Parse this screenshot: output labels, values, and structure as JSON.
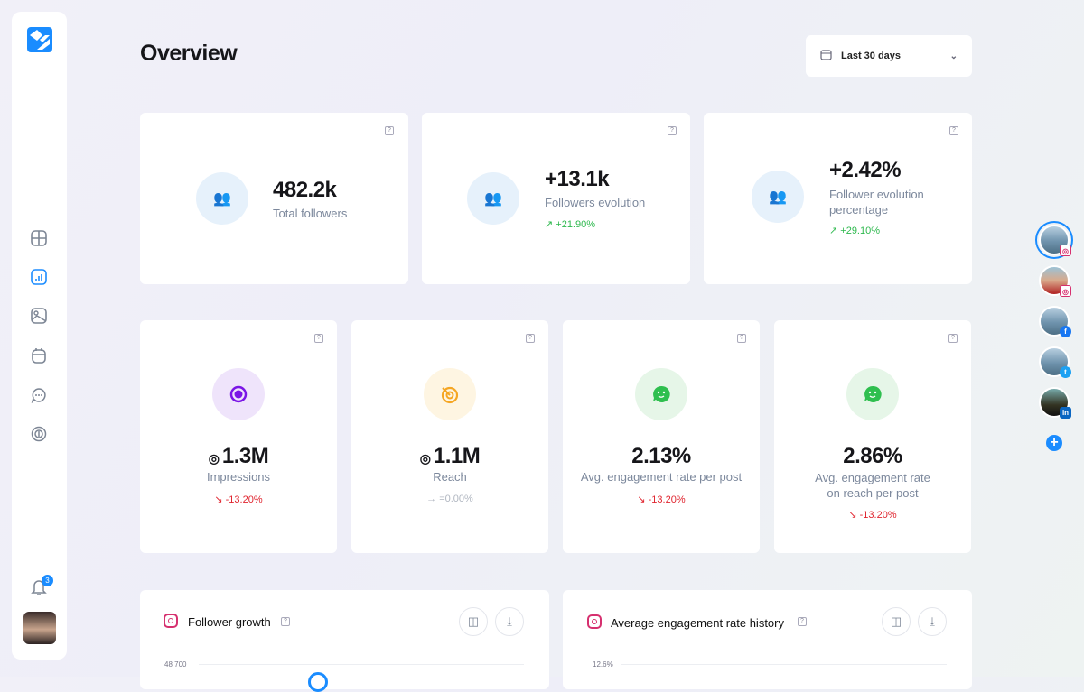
{
  "header": {
    "title": "Overview",
    "date_range": "Last 30 days"
  },
  "sidebar": {
    "items": [
      "dashboard",
      "analytics",
      "media",
      "calendar",
      "messages",
      "listening"
    ],
    "active": "analytics",
    "notifications": "3"
  },
  "stats_top": [
    {
      "value": "482.2k",
      "label": "Total followers",
      "change": ""
    },
    {
      "value": "+13.1k",
      "label": "Followers evolution",
      "change": "↗ +21.90%"
    },
    {
      "value": "+2.42%",
      "label": "Follower evolution percentage",
      "change": "↗ +29.10%"
    }
  ],
  "stats_bottom": [
    {
      "value": "1.3M",
      "label": "Impressions",
      "change": "↘ -13.20%",
      "trend": "down"
    },
    {
      "value": "1.1M",
      "label": "Reach",
      "change": "→ =0.00%",
      "trend": "flat"
    },
    {
      "value": "2.13%",
      "label": "Avg. engagement rate per post",
      "change": "↘ -13.20%",
      "trend": "down"
    },
    {
      "value": "2.86%",
      "label": "Avg. engagement rate on reach per post",
      "change": "↘ -13.20%",
      "trend": "down"
    }
  ],
  "charts": [
    {
      "title": "Follower growth",
      "top_tick": "48 700"
    },
    {
      "title": "Average engagement rate history",
      "top_tick": "12.6%"
    }
  ],
  "accounts": [
    "instagram",
    "instagram",
    "facebook",
    "twitter",
    "linkedin"
  ],
  "colors": {
    "accent": "#1a8cff",
    "up": "#2db84d",
    "down": "#e0252f"
  }
}
